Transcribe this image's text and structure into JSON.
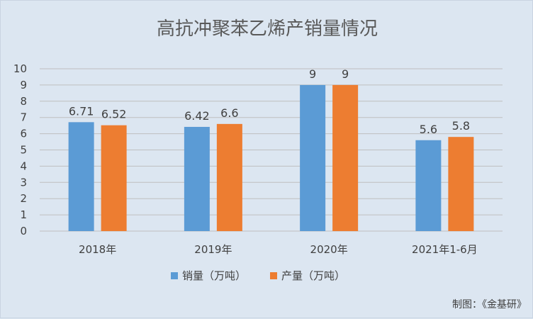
{
  "chart_data": {
    "type": "bar",
    "title": "高抗冲聚苯乙烯产销量情况",
    "categories": [
      "2018年",
      "2019年",
      "2020年",
      "2021年1-6月"
    ],
    "series": [
      {
        "name": "销量（万吨）",
        "values": [
          6.71,
          6.42,
          9,
          5.6
        ],
        "labels": [
          "6.71",
          "6.42",
          "9",
          "5.6"
        ],
        "color": "#5b9bd5"
      },
      {
        "name": "产量（万吨）",
        "values": [
          6.52,
          6.6,
          9,
          5.8
        ],
        "labels": [
          "6.52",
          "6.6",
          "9",
          "5.8"
        ],
        "color": "#ed7d31"
      }
    ],
    "ylim": [
      0,
      10
    ],
    "yticks": [
      0,
      1,
      2,
      3,
      4,
      5,
      6,
      7,
      8,
      9,
      10
    ],
    "yticks_labels": [
      "0",
      "1",
      "2",
      "3",
      "4",
      "5",
      "6",
      "7",
      "8",
      "9",
      "10"
    ],
    "grid": true,
    "legend_position": "bottom-center",
    "background_color": "#dce6f1",
    "gridline_color": "#bfbfbf"
  },
  "footer": {
    "credit": "制图：《金基研》"
  }
}
